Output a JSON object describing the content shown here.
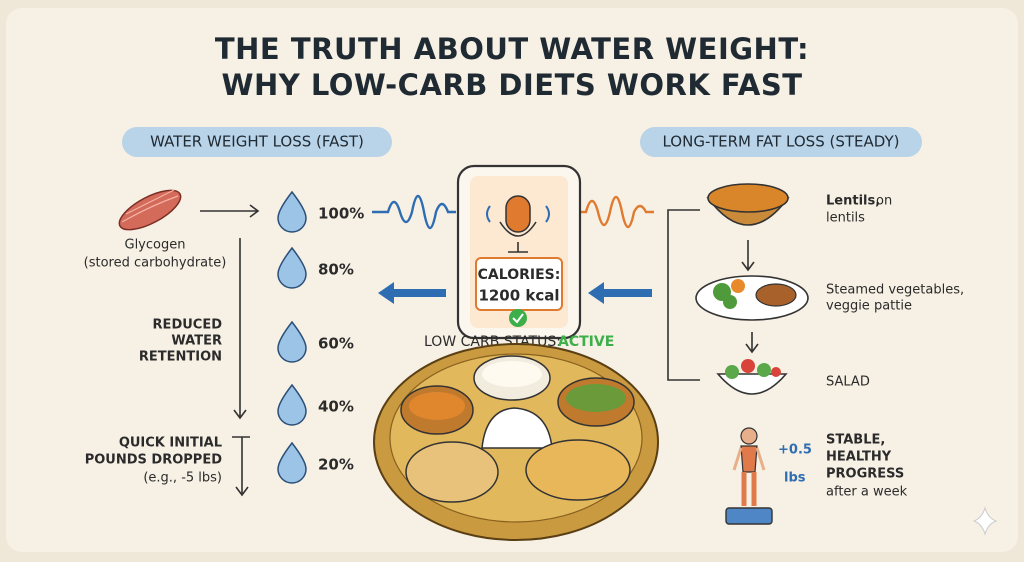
{
  "header": {
    "title_lines": [
      "THE TRUTH ABOUT WATER WEIGHT:",
      "WHY LOW-CARB DIETS WORK FAST"
    ]
  },
  "left_panel": {
    "heading": "WATER WEIGHT LOSS (FAST)",
    "glycogen": [
      "Glycogen",
      "(stored carbohydrate)"
    ],
    "levels": [
      "100%",
      "80%",
      "60%",
      "40%",
      "20%"
    ],
    "reduced": [
      "REDUCED",
      "WATER",
      "RETENTION"
    ],
    "quick": [
      "QUICK INITIAL",
      "POUNDS DROPPED",
      "(e.g., -5 lbs)"
    ]
  },
  "center": {
    "calories_label": "CALORIES:",
    "calories_value": "1200 kcal",
    "status_label": "LOW CARB STATUS:",
    "status_value": "ACTIVE"
  },
  "right_panel": {
    "heading": "LONG-TERM FAT LOSS (STEADY)",
    "lentils": [
      "Lentils,",
      "on",
      "lentils"
    ],
    "vegetables": [
      "Steamed vegetables,",
      "veggie pattie"
    ],
    "salad": "SALAD",
    "gain": [
      "+0.5",
      "lbs"
    ],
    "progress": [
      "STABLE,",
      "HEALTHY",
      "PROGRESS",
      "after a week"
    ]
  }
}
